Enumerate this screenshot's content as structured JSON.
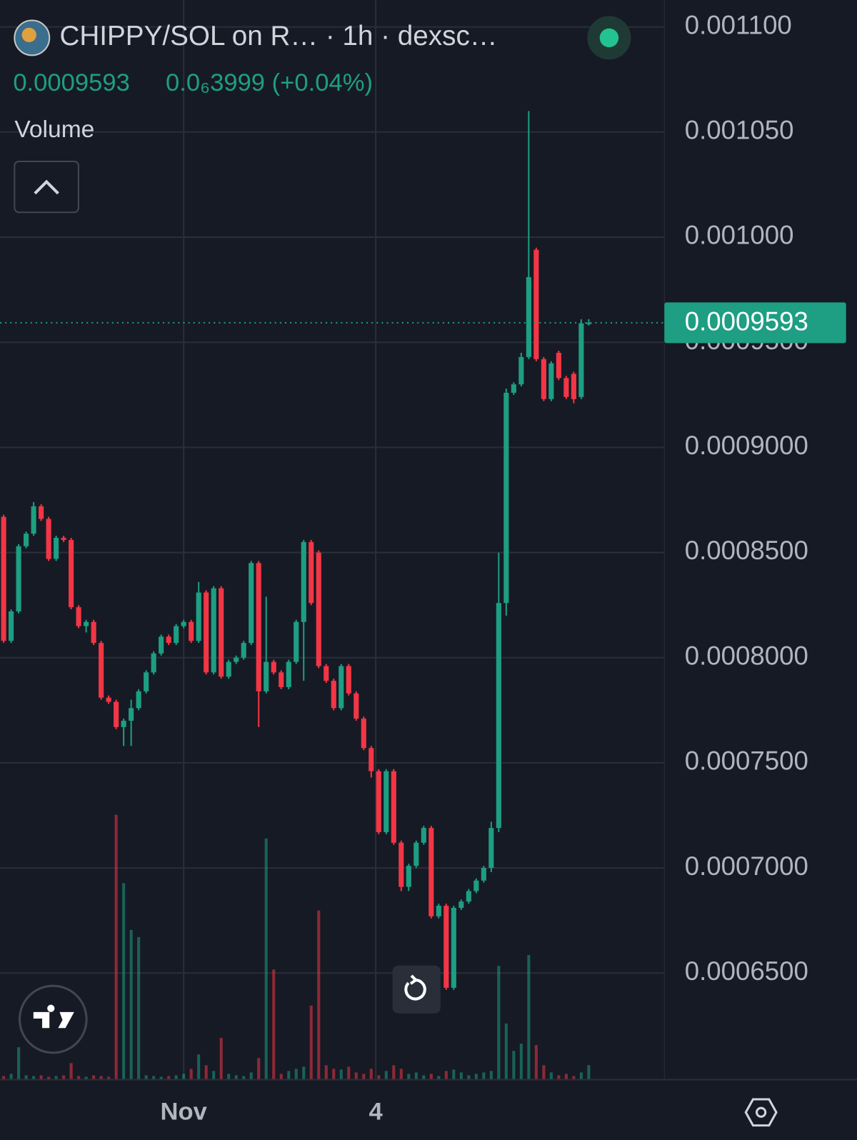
{
  "chart_data": {
    "type": "candlestick",
    "title": "CHIPPY/SOL on R…  · 1h · dexsc…",
    "last_price": 0.0009593,
    "change": "0.0₆3999 (+0.04%)",
    "volume_label": "Volume",
    "up_color": "#1e9e82",
    "down_color": "#f23645",
    "grid": true,
    "ylim": [
      0.0005993,
      0.0011128
    ],
    "vlim": [
      0,
      1500
    ],
    "yticks": [
      {
        "value": 0.0011,
        "label": "0.001100"
      },
      {
        "value": 0.00105,
        "label": "0.001050"
      },
      {
        "value": 0.001,
        "label": "0.001000"
      },
      {
        "value": 0.00095,
        "label": "0.0009500"
      },
      {
        "value": 0.0009,
        "label": "0.0009000"
      },
      {
        "value": 0.00085,
        "label": "0.0008500"
      },
      {
        "value": 0.0008,
        "label": "0.0008000"
      },
      {
        "value": 0.00075,
        "label": "0.0007500"
      },
      {
        "value": 0.0007,
        "label": "0.0007000"
      },
      {
        "value": 0.00065,
        "label": "0.0006500"
      }
    ],
    "xticks": [
      {
        "value": 24,
        "label": "Nov"
      },
      {
        "value": 49.6,
        "label": "4"
      }
    ],
    "open": [
      0.000867,
      0.000808,
      0.000822,
      0.000853,
      0.000859,
      0.000872,
      0.000866,
      0.000847,
      0.000857,
      0.000856,
      0.000824,
      0.000815,
      0.000817,
      0.000807,
      0.000781,
      0.000779,
      0.000767,
      0.00077,
      0.000776,
      0.000784,
      0.000793,
      0.000802,
      0.00081,
      0.000807,
      0.000815,
      0.000817,
      0.000808,
      0.000831,
      0.000793,
      0.000833,
      0.000791,
      0.000798,
      0.0008,
      0.000807,
      0.000845,
      0.000784,
      0.000798,
      0.000793,
      0.000786,
      0.000798,
      0.000817,
      0.000855,
      0.00085,
      0.000796,
      0.000789,
      0.000776,
      0.000796,
      0.000783,
      0.000771,
      0.000757,
      0.000746,
      0.000717,
      0.000746,
      0.000712,
      0.000691,
      0.000701,
      0.000712,
      0.000719,
      0.000677,
      0.000682,
      0.000643,
      0.000681,
      0.000684,
      0.000689,
      0.000694,
      0.0007,
      0.000719,
      0.000826,
      0.000926,
      0.00093,
      0.000943,
      0.000994,
      0.000942,
      0.000923,
      0.000945,
      0.000933,
      0.000935,
      0.000924,
      0.000959
    ],
    "high": [
      0.000868,
      0.000823,
      0.000854,
      0.00086,
      0.000874,
      0.000873,
      0.000867,
      0.000858,
      0.000858,
      0.000857,
      0.000825,
      0.000818,
      0.000818,
      0.000808,
      0.000782,
      0.00078,
      0.000771,
      0.00078,
      0.000785,
      0.000794,
      0.000803,
      0.000811,
      0.000811,
      0.000816,
      0.000818,
      0.000818,
      0.000836,
      0.000832,
      0.000834,
      0.000834,
      0.000799,
      0.000801,
      0.000808,
      0.000846,
      0.000846,
      0.000829,
      0.000799,
      0.000794,
      0.000799,
      0.000818,
      0.000856,
      0.000856,
      0.000851,
      0.000797,
      0.00079,
      0.000797,
      0.000797,
      0.000784,
      0.000772,
      0.000758,
      0.000747,
      0.000747,
      0.000747,
      0.000713,
      0.000702,
      0.000713,
      0.00072,
      0.00072,
      0.000683,
      0.000683,
      0.000682,
      0.000685,
      0.00069,
      0.000695,
      0.000701,
      0.000722,
      0.00085,
      0.000928,
      0.000931,
      0.000945,
      0.00106,
      0.000995,
      0.000943,
      0.000941,
      0.000946,
      0.000934,
      0.000936,
      0.000961,
      0.000961
    ],
    "low": [
      0.000807,
      0.000807,
      0.000821,
      0.000852,
      0.000858,
      0.000865,
      0.000846,
      0.000846,
      0.000855,
      0.000823,
      0.000814,
      0.000812,
      0.000806,
      0.00078,
      0.000778,
      0.000766,
      0.000758,
      0.000758,
      0.000775,
      0.000783,
      0.000792,
      0.000801,
      0.000806,
      0.000806,
      0.000814,
      0.000807,
      0.000807,
      0.000792,
      0.000792,
      0.00079,
      0.00079,
      0.000797,
      0.000799,
      0.000806,
      0.000767,
      0.000783,
      0.000792,
      0.000785,
      0.000785,
      0.000797,
      0.000789,
      0.000825,
      0.000795,
      0.000788,
      0.000775,
      0.000775,
      0.000782,
      0.00077,
      0.000756,
      0.000743,
      0.000716,
      0.000716,
      0.000711,
      0.000689,
      0.000689,
      0.0007,
      0.000711,
      0.000676,
      0.000676,
      0.000642,
      0.000642,
      0.00068,
      0.000683,
      0.000688,
      0.000693,
      0.000698,
      0.000717,
      0.00082,
      0.000925,
      0.000929,
      0.000942,
      0.000941,
      0.000922,
      0.000922,
      0.000932,
      0.000923,
      0.000921,
      0.000923,
      0.000958
    ],
    "close": [
      0.000808,
      0.000822,
      0.000853,
      0.000859,
      0.000872,
      0.000866,
      0.000847,
      0.000857,
      0.000856,
      0.000824,
      0.000815,
      0.000817,
      0.000807,
      0.000781,
      0.000779,
      0.000767,
      0.00077,
      0.000776,
      0.000784,
      0.000793,
      0.000802,
      0.00081,
      0.000807,
      0.000815,
      0.000817,
      0.000808,
      0.000831,
      0.000793,
      0.000833,
      0.000791,
      0.000798,
      0.0008,
      0.000807,
      0.000845,
      0.000784,
      0.000798,
      0.000793,
      0.000786,
      0.000798,
      0.000817,
      0.000855,
      0.000826,
      0.000796,
      0.000789,
      0.000776,
      0.000796,
      0.000783,
      0.000771,
      0.000757,
      0.000746,
      0.000717,
      0.000746,
      0.000712,
      0.000691,
      0.000701,
      0.000712,
      0.000719,
      0.000677,
      0.000682,
      0.000643,
      0.000681,
      0.000684,
      0.000689,
      0.000694,
      0.0007,
      0.000719,
      0.000826,
      0.000926,
      0.00093,
      0.000943,
      0.000981,
      0.000942,
      0.000923,
      0.00094,
      0.000933,
      0.000924,
      0.000923,
      0.000959,
      0.0009593
    ],
    "volume": [
      5,
      8,
      45,
      6,
      5,
      6,
      4,
      5,
      6,
      23,
      5,
      4,
      6,
      5,
      4,
      368,
      273,
      208,
      198,
      6,
      5,
      4,
      5,
      6,
      8,
      15,
      35,
      20,
      12,
      58,
      8,
      6,
      5,
      10,
      30,
      335,
      153,
      8,
      12,
      15,
      18,
      103,
      235,
      20,
      15,
      14,
      18,
      10,
      8,
      15,
      6,
      12,
      20,
      15,
      8,
      10,
      6,
      8,
      5,
      12,
      14,
      10,
      6,
      8,
      10,
      12,
      158,
      78,
      40,
      50,
      173,
      48,
      20,
      10,
      6,
      8,
      5,
      10,
      20
    ]
  }
}
